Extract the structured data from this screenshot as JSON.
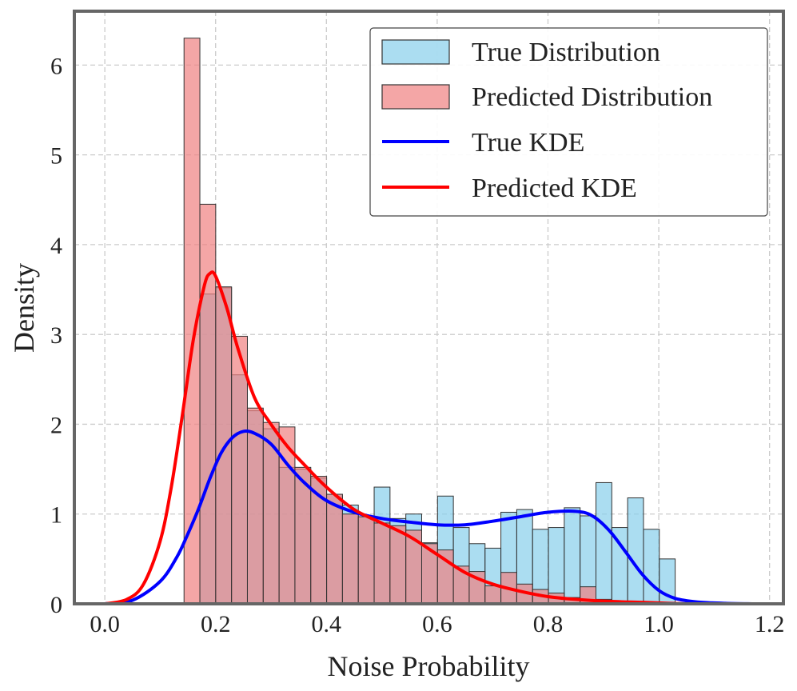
{
  "chart_data": {
    "type": "histogram",
    "title": "",
    "xlabel": "Noise Probability",
    "ylabel": "Density",
    "xlim": [
      -0.055,
      1.225
    ],
    "ylim": [
      0,
      6.6
    ],
    "xticks": [
      0.0,
      0.2,
      0.4,
      0.6,
      0.8,
      1.0,
      1.2
    ],
    "xtick_labels": [
      "0.0",
      "0.2",
      "0.4",
      "0.6",
      "0.8",
      "1.0",
      "1.2"
    ],
    "yticks": [
      0,
      1,
      2,
      3,
      4,
      5,
      6
    ],
    "ytick_labels": [
      "0",
      "1",
      "2",
      "3",
      "4",
      "5",
      "6"
    ],
    "grid": true,
    "legend_position": "upper right",
    "colors": {
      "true_hist": "#87ceeb",
      "pred_hist": "#f08080",
      "true_kde": "#0000ff",
      "pred_kde": "#ff0000",
      "bar_edge": "#333333",
      "frame": "#666666",
      "grid": "#cccccc"
    },
    "series": [
      {
        "name": "True Distribution",
        "kind": "histogram",
        "bin_start": 0.143,
        "bin_width": 0.0286,
        "values": [
          0.0,
          3.45,
          3.52,
          2.55,
          2.15,
          1.95,
          1.52,
          1.5,
          1.4,
          1.22,
          1.1,
          0.97,
          1.3,
          0.95,
          1.0,
          0.68,
          1.2,
          0.85,
          0.67,
          0.62,
          1.02,
          1.05,
          0.83,
          0.85,
          1.07,
          0.98,
          1.35,
          0.85,
          1.18,
          0.83,
          0.5
        ]
      },
      {
        "name": "Predicted Distribution",
        "kind": "histogram",
        "bin_start": 0.143,
        "bin_width": 0.0286,
        "values": [
          6.3,
          4.45,
          3.53,
          2.98,
          2.18,
          2.02,
          1.97,
          1.52,
          1.42,
          1.22,
          1.0,
          0.97,
          0.9,
          0.87,
          0.82,
          0.67,
          0.6,
          0.42,
          0.36,
          0.2,
          0.35,
          0.22,
          0.16,
          0.12,
          0.07,
          0.19,
          0.05,
          0.03,
          0.02,
          0.02,
          0.0
        ]
      },
      {
        "name": "True KDE",
        "kind": "line",
        "x": [
          0.0,
          0.05,
          0.1,
          0.13,
          0.15,
          0.17,
          0.19,
          0.21,
          0.23,
          0.25,
          0.27,
          0.3,
          0.33,
          0.36,
          0.4,
          0.45,
          0.5,
          0.55,
          0.6,
          0.65,
          0.7,
          0.75,
          0.8,
          0.85,
          0.88,
          0.91,
          0.94,
          0.97,
          1.0,
          1.03,
          1.07,
          1.12,
          1.17
        ],
        "y": [
          0.0,
          0.04,
          0.25,
          0.52,
          0.78,
          1.07,
          1.4,
          1.68,
          1.85,
          1.92,
          1.9,
          1.78,
          1.55,
          1.35,
          1.15,
          1.02,
          0.95,
          0.91,
          0.88,
          0.88,
          0.92,
          0.97,
          1.02,
          1.03,
          0.98,
          0.82,
          0.58,
          0.33,
          0.15,
          0.06,
          0.02,
          0.005,
          0.0
        ]
      },
      {
        "name": "Predicted KDE",
        "kind": "line",
        "x": [
          0.0,
          0.04,
          0.07,
          0.1,
          0.12,
          0.14,
          0.16,
          0.18,
          0.19,
          0.2,
          0.22,
          0.24,
          0.27,
          0.3,
          0.33,
          0.36,
          0.4,
          0.45,
          0.5,
          0.55,
          0.6,
          0.65,
          0.7,
          0.75,
          0.8,
          0.85,
          0.9,
          0.95,
          1.0,
          1.05
        ],
        "y": [
          0.0,
          0.05,
          0.22,
          0.7,
          1.3,
          2.1,
          2.95,
          3.55,
          3.68,
          3.65,
          3.3,
          2.85,
          2.3,
          2.0,
          1.75,
          1.55,
          1.3,
          1.05,
          0.9,
          0.75,
          0.55,
          0.35,
          0.22,
          0.14,
          0.08,
          0.05,
          0.03,
          0.02,
          0.01,
          0.0
        ]
      }
    ]
  }
}
